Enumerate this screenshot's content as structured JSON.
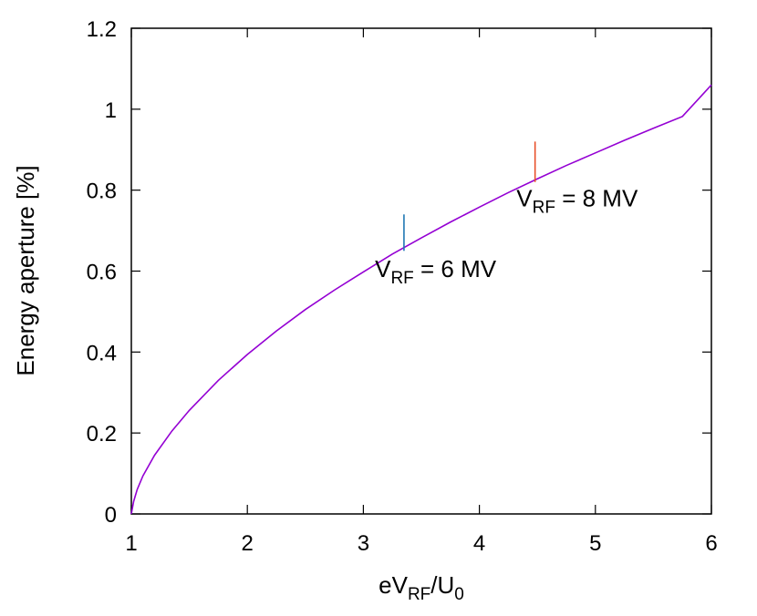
{
  "chart_data": {
    "type": "line",
    "title": "",
    "xlabel": "eV_RF/U_0",
    "xlabel_parts": {
      "main": "eV",
      "sub1": "RF",
      "mid": "/U",
      "sub2": "0"
    },
    "ylabel": "Energy aperture [%]",
    "xlim": [
      1,
      6
    ],
    "ylim": [
      0,
      1.2
    ],
    "x_ticks": [
      1,
      2,
      3,
      4,
      5,
      6
    ],
    "x_tick_labels": [
      "1",
      "2",
      "3",
      "4",
      "5",
      "6"
    ],
    "y_ticks": [
      0,
      0.2,
      0.4,
      0.6,
      0.8,
      1.0,
      1.2
    ],
    "y_tick_labels": [
      "0",
      "0.2",
      "0.4",
      "0.6",
      "0.8",
      "1",
      "1.2"
    ],
    "grid": false,
    "series": [
      {
        "color": "#9400d3",
        "x": [
          1.0,
          1.02,
          1.05,
          1.1,
          1.2,
          1.35,
          1.5,
          1.75,
          2.0,
          2.25,
          2.5,
          2.75,
          3.0,
          3.25,
          3.5,
          3.75,
          4.0,
          4.25,
          4.5,
          4.75,
          5.0,
          5.25,
          5.5,
          5.75,
          6.0
        ],
        "y": [
          0.0,
          0.031,
          0.06,
          0.094,
          0.145,
          0.205,
          0.256,
          0.33,
          0.394,
          0.452,
          0.505,
          0.553,
          0.598,
          0.642,
          0.682,
          0.721,
          0.758,
          0.794,
          0.828,
          0.861,
          0.892,
          0.923,
          0.953,
          0.982,
          1.06
        ]
      }
    ],
    "annotations": [
      {
        "x": 3.35,
        "y": 0.695,
        "half_height": 0.045,
        "color": "#1f77b4",
        "text_main": "V",
        "text_sub": "RF",
        "text_rest": " = 6 MV",
        "label_x": 3.1,
        "label_y": 0.585
      },
      {
        "x": 4.48,
        "y": 0.87,
        "half_height": 0.05,
        "color": "#e8502a",
        "text_main": "V",
        "text_sub": "RF",
        "text_rest": " = 8 MV",
        "label_x": 4.32,
        "label_y": 0.76
      }
    ]
  }
}
